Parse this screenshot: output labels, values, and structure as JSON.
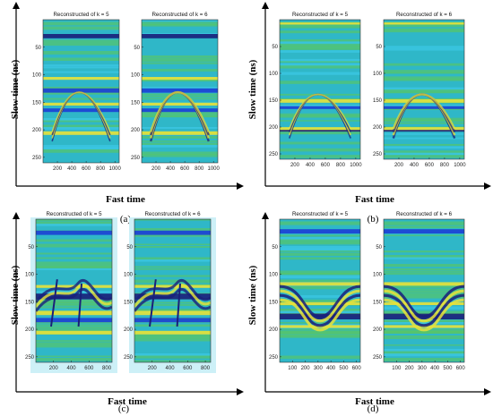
{
  "colors": {
    "teal": "#2fb7c8",
    "green": "#56c46a",
    "yellow": "#e8e23a",
    "blue": "#1c3fd6",
    "navy": "#1a1f7a",
    "cyan": "#3cc7e6"
  },
  "figure": {
    "axis_x_label": "Fast time",
    "axis_y_label": "Slow time (ns)",
    "panels": [
      {
        "id": "a",
        "label": "(a)",
        "subplots": [
          {
            "title": "Reconstructed of k = 5"
          },
          {
            "title": "Reconstructed of k = 6"
          }
        ],
        "y_ticks": [
          "50",
          "100",
          "150",
          "200",
          "250"
        ],
        "x_ticks": [
          "200",
          "400",
          "600",
          "800",
          "1000"
        ]
      },
      {
        "id": "b",
        "label": "(b)",
        "subplots": [
          {
            "title": "Reconstructed of k = 5"
          },
          {
            "title": "Reconstructed of k = 6"
          }
        ],
        "y_ticks": [
          "50",
          "100",
          "150",
          "200",
          "250"
        ],
        "x_ticks": [
          "200",
          "400",
          "600",
          "800",
          "1000"
        ]
      },
      {
        "id": "c",
        "label": "(c)",
        "subplots": [
          {
            "title": "Reconstructed of k = 5"
          },
          {
            "title": "Reconstructed of k = 6"
          }
        ],
        "y_ticks": [
          "50",
          "100",
          "150",
          "200",
          "250"
        ],
        "x_ticks": [
          "200",
          "400",
          "600",
          "800"
        ]
      },
      {
        "id": "d",
        "label": "(d)",
        "subplots": [
          {
            "title": "Reconstructed of k = 5"
          },
          {
            "title": "Reconstructed of k = 6"
          }
        ],
        "y_ticks": [
          "50",
          "100",
          "150",
          "200",
          "250"
        ],
        "x_ticks": [
          "100",
          "200",
          "300",
          "400",
          "500",
          "600"
        ]
      }
    ]
  }
}
